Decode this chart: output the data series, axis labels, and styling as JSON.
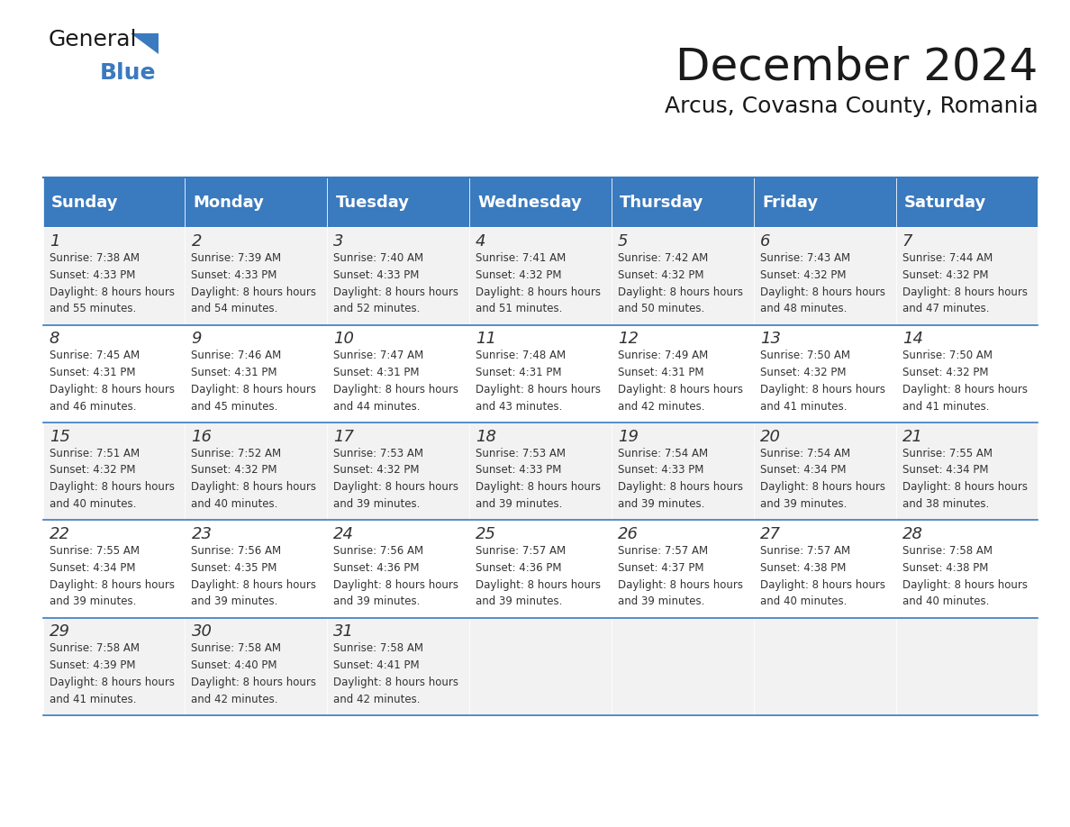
{
  "title": "December 2024",
  "subtitle": "Arcus, Covasna County, Romania",
  "days_of_week": [
    "Sunday",
    "Monday",
    "Tuesday",
    "Wednesday",
    "Thursday",
    "Friday",
    "Saturday"
  ],
  "header_bg": "#3a7abf",
  "header_text": "#ffffff",
  "cell_bg_light": "#f2f2f2",
  "cell_bg_white": "#ffffff",
  "border_color": "#3a7abf",
  "text_color": "#333333",
  "calendar_data": [
    [
      {
        "day": 1,
        "sunrise": "7:38 AM",
        "sunset": "4:33 PM",
        "daylight": "8 hours and 55 minutes."
      },
      {
        "day": 2,
        "sunrise": "7:39 AM",
        "sunset": "4:33 PM",
        "daylight": "8 hours and 54 minutes."
      },
      {
        "day": 3,
        "sunrise": "7:40 AM",
        "sunset": "4:33 PM",
        "daylight": "8 hours and 52 minutes."
      },
      {
        "day": 4,
        "sunrise": "7:41 AM",
        "sunset": "4:32 PM",
        "daylight": "8 hours and 51 minutes."
      },
      {
        "day": 5,
        "sunrise": "7:42 AM",
        "sunset": "4:32 PM",
        "daylight": "8 hours and 50 minutes."
      },
      {
        "day": 6,
        "sunrise": "7:43 AM",
        "sunset": "4:32 PM",
        "daylight": "8 hours and 48 minutes."
      },
      {
        "day": 7,
        "sunrise": "7:44 AM",
        "sunset": "4:32 PM",
        "daylight": "8 hours and 47 minutes."
      }
    ],
    [
      {
        "day": 8,
        "sunrise": "7:45 AM",
        "sunset": "4:31 PM",
        "daylight": "8 hours and 46 minutes."
      },
      {
        "day": 9,
        "sunrise": "7:46 AM",
        "sunset": "4:31 PM",
        "daylight": "8 hours and 45 minutes."
      },
      {
        "day": 10,
        "sunrise": "7:47 AM",
        "sunset": "4:31 PM",
        "daylight": "8 hours and 44 minutes."
      },
      {
        "day": 11,
        "sunrise": "7:48 AM",
        "sunset": "4:31 PM",
        "daylight": "8 hours and 43 minutes."
      },
      {
        "day": 12,
        "sunrise": "7:49 AM",
        "sunset": "4:31 PM",
        "daylight": "8 hours and 42 minutes."
      },
      {
        "day": 13,
        "sunrise": "7:50 AM",
        "sunset": "4:32 PM",
        "daylight": "8 hours and 41 minutes."
      },
      {
        "day": 14,
        "sunrise": "7:50 AM",
        "sunset": "4:32 PM",
        "daylight": "8 hours and 41 minutes."
      }
    ],
    [
      {
        "day": 15,
        "sunrise": "7:51 AM",
        "sunset": "4:32 PM",
        "daylight": "8 hours and 40 minutes."
      },
      {
        "day": 16,
        "sunrise": "7:52 AM",
        "sunset": "4:32 PM",
        "daylight": "8 hours and 40 minutes."
      },
      {
        "day": 17,
        "sunrise": "7:53 AM",
        "sunset": "4:32 PM",
        "daylight": "8 hours and 39 minutes."
      },
      {
        "day": 18,
        "sunrise": "7:53 AM",
        "sunset": "4:33 PM",
        "daylight": "8 hours and 39 minutes."
      },
      {
        "day": 19,
        "sunrise": "7:54 AM",
        "sunset": "4:33 PM",
        "daylight": "8 hours and 39 minutes."
      },
      {
        "day": 20,
        "sunrise": "7:54 AM",
        "sunset": "4:34 PM",
        "daylight": "8 hours and 39 minutes."
      },
      {
        "day": 21,
        "sunrise": "7:55 AM",
        "sunset": "4:34 PM",
        "daylight": "8 hours and 38 minutes."
      }
    ],
    [
      {
        "day": 22,
        "sunrise": "7:55 AM",
        "sunset": "4:34 PM",
        "daylight": "8 hours and 39 minutes."
      },
      {
        "day": 23,
        "sunrise": "7:56 AM",
        "sunset": "4:35 PM",
        "daylight": "8 hours and 39 minutes."
      },
      {
        "day": 24,
        "sunrise": "7:56 AM",
        "sunset": "4:36 PM",
        "daylight": "8 hours and 39 minutes."
      },
      {
        "day": 25,
        "sunrise": "7:57 AM",
        "sunset": "4:36 PM",
        "daylight": "8 hours and 39 minutes."
      },
      {
        "day": 26,
        "sunrise": "7:57 AM",
        "sunset": "4:37 PM",
        "daylight": "8 hours and 39 minutes."
      },
      {
        "day": 27,
        "sunrise": "7:57 AM",
        "sunset": "4:38 PM",
        "daylight": "8 hours and 40 minutes."
      },
      {
        "day": 28,
        "sunrise": "7:58 AM",
        "sunset": "4:38 PM",
        "daylight": "8 hours and 40 minutes."
      }
    ],
    [
      {
        "day": 29,
        "sunrise": "7:58 AM",
        "sunset": "4:39 PM",
        "daylight": "8 hours and 41 minutes."
      },
      {
        "day": 30,
        "sunrise": "7:58 AM",
        "sunset": "4:40 PM",
        "daylight": "8 hours and 42 minutes."
      },
      {
        "day": 31,
        "sunrise": "7:58 AM",
        "sunset": "4:41 PM",
        "daylight": "8 hours and 42 minutes."
      },
      null,
      null,
      null,
      null
    ]
  ]
}
